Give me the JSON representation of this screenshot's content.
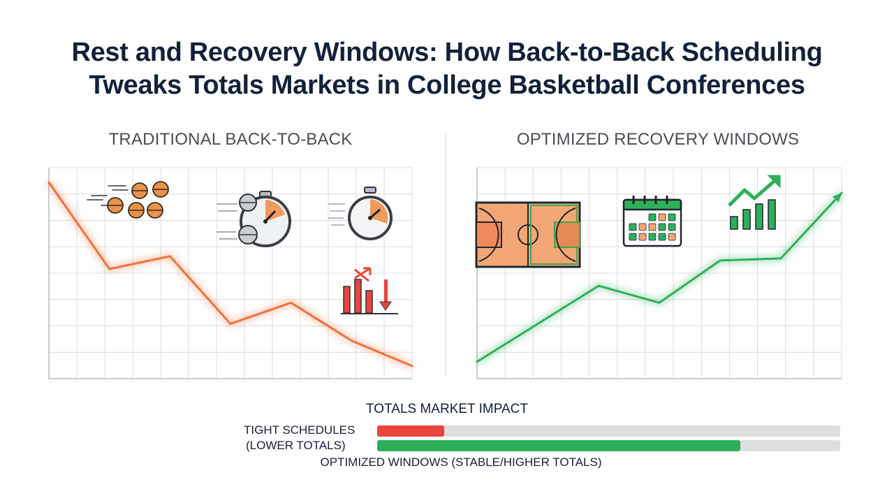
{
  "title_line1": "Rest and Recovery Windows: How Back-to-Back Scheduling",
  "title_line2": "Tweaks Totals Markets in College Basketball Conferences",
  "left_panel": {
    "label": "TRADITIONAL BACK-TO-BACK",
    "color": "#f2703a"
  },
  "right_panel": {
    "label": "OPTIMIZED RECOVERY WINDOWS",
    "color": "#2eb05a"
  },
  "chart_data": [
    {
      "type": "line",
      "title": "TRADITIONAL BACK-TO-BACK",
      "x": [
        0,
        1,
        2,
        3,
        4,
        5,
        6
      ],
      "series": [
        {
          "values": [
            0.93,
            0.52,
            0.58,
            0.26,
            0.36,
            0.18,
            0.06
          ]
        }
      ],
      "ylim": [
        0,
        1
      ],
      "grid": true
    },
    {
      "type": "line",
      "title": "OPTIMIZED RECOVERY WINDOWS",
      "x": [
        0,
        1,
        2,
        3,
        4,
        5,
        6
      ],
      "series": [
        {
          "values": [
            0.08,
            0.26,
            0.44,
            0.36,
            0.56,
            0.57,
            0.88
          ]
        }
      ],
      "ylim": [
        0,
        1
      ],
      "grid": true
    },
    {
      "type": "bar",
      "title": "TOTALS MARKET IMPACT",
      "categories": [
        "TIGHT SCHEDULES (LOWER TOTALS)",
        "OPTIMIZED WINDOWS (STABLE/HIGHER TOTALS)"
      ],
      "values": [
        0.145,
        0.785
      ],
      "colors": [
        "#e8453c",
        "#2eb05a"
      ],
      "ylim": [
        0,
        1
      ]
    }
  ],
  "impact": {
    "title": "TOTALS MARKET IMPACT",
    "label_line1": "TIGHT SCHEDULES",
    "label_line2": "(LOWER TOTALS)",
    "label_line3": "OPTIMIZED WINDOWS (STABLE/HIGHER TOTALS)",
    "tight_fraction": 0.145,
    "optimized_fraction": 0.785,
    "tight_color": "#e8453c",
    "optimized_color": "#2eb05a"
  },
  "icons": {
    "left": [
      "basketballs-motion-icon",
      "stopwatch-basketball-icon",
      "stopwatch-icon",
      "declining-bars-icon"
    ],
    "right": [
      "basketball-court-icon",
      "calendar-icon",
      "rising-bars-icon"
    ]
  }
}
